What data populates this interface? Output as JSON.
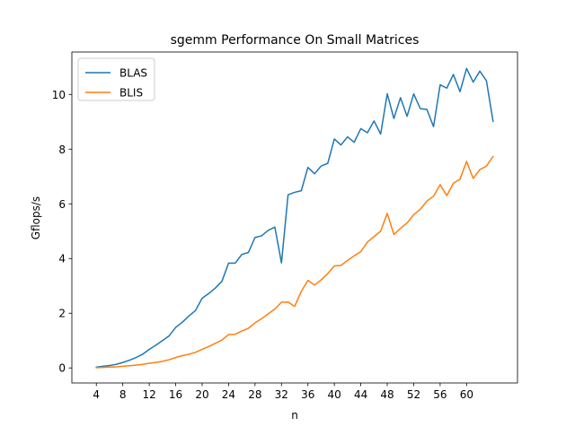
{
  "chart_data": {
    "type": "line",
    "title": "sgemm Performance On Small Matrices",
    "xlabel": "n",
    "ylabel": "Gflops/s",
    "xlim": [
      0.3,
      67.7
    ],
    "ylim": [
      -0.55,
      11.55
    ],
    "xticks": [
      4,
      8,
      12,
      16,
      20,
      24,
      28,
      32,
      36,
      40,
      44,
      48,
      52,
      56,
      60
    ],
    "yticks": [
      0,
      2,
      4,
      6,
      8,
      10
    ],
    "grid": false,
    "legend_position": "top-left",
    "x": [
      4,
      5,
      6,
      7,
      8,
      9,
      10,
      11,
      12,
      13,
      14,
      15,
      16,
      17,
      18,
      19,
      20,
      21,
      22,
      23,
      24,
      25,
      26,
      27,
      28,
      29,
      30,
      31,
      32,
      33,
      34,
      35,
      36,
      37,
      38,
      39,
      40,
      41,
      42,
      43,
      44,
      45,
      46,
      47,
      48,
      49,
      50,
      51,
      52,
      53,
      54,
      55,
      56,
      57,
      58,
      59,
      60,
      61,
      62,
      63,
      64
    ],
    "series": [
      {
        "name": "BLAS",
        "color": "#1f77b4",
        "values": [
          0.03,
          0.06,
          0.09,
          0.13,
          0.2,
          0.28,
          0.38,
          0.5,
          0.68,
          0.83,
          1.0,
          1.17,
          1.48,
          1.67,
          1.9,
          2.1,
          2.55,
          2.72,
          2.92,
          3.17,
          3.83,
          3.83,
          4.15,
          4.22,
          4.77,
          4.83,
          5.03,
          5.15,
          3.84,
          6.33,
          6.42,
          6.48,
          7.33,
          7.1,
          7.38,
          7.48,
          8.37,
          8.15,
          8.45,
          8.25,
          8.75,
          8.6,
          9.03,
          8.55,
          10.02,
          9.12,
          9.88,
          9.2,
          10.02,
          9.48,
          9.45,
          8.82,
          10.35,
          10.23,
          10.73,
          10.1,
          10.95,
          10.45,
          10.85,
          10.5,
          9.02
        ]
      },
      {
        "name": "BLIS",
        "color": "#ff7f0e",
        "values": [
          0.01,
          0.02,
          0.03,
          0.04,
          0.06,
          0.08,
          0.1,
          0.13,
          0.17,
          0.2,
          0.24,
          0.3,
          0.38,
          0.45,
          0.5,
          0.57,
          0.68,
          0.78,
          0.9,
          1.02,
          1.22,
          1.23,
          1.35,
          1.45,
          1.65,
          1.8,
          1.98,
          2.15,
          2.4,
          2.41,
          2.25,
          2.8,
          3.2,
          3.03,
          3.22,
          3.45,
          3.73,
          3.75,
          3.93,
          4.1,
          4.25,
          4.6,
          4.8,
          5.0,
          5.65,
          4.88,
          5.1,
          5.3,
          5.6,
          5.8,
          6.1,
          6.28,
          6.7,
          6.3,
          6.75,
          6.9,
          7.55,
          6.93,
          7.25,
          7.38,
          7.73
        ]
      }
    ]
  }
}
